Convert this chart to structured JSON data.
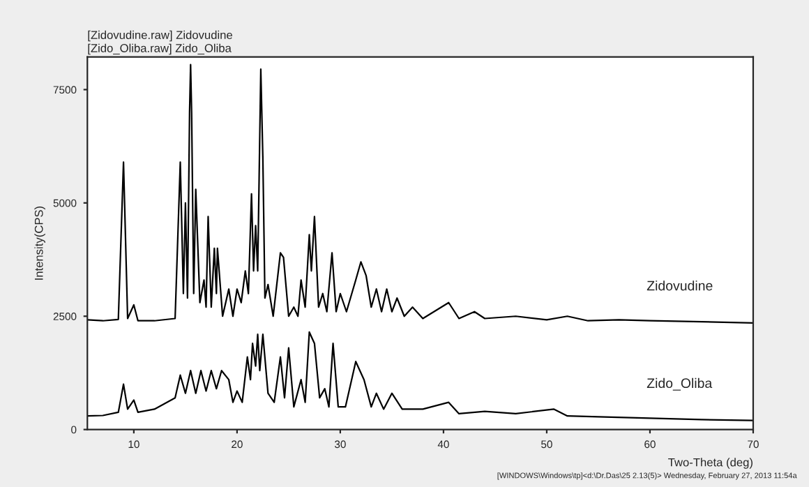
{
  "chart_data": {
    "type": "line",
    "xlabel": "Two-Theta (deg)",
    "ylabel": "Intensity(CPS)",
    "xlim": [
      5.5,
      70
    ],
    "ylim": [
      0,
      8220
    ],
    "xticks": [
      10,
      20,
      30,
      40,
      50,
      60,
      70
    ],
    "yticks": [
      0,
      2500,
      5000,
      7500
    ],
    "grid": false,
    "legend": false,
    "annotations": [
      "[Zidovudine.raw] Zidovudine",
      "[Zido_Oliba.raw] Zido_Oliba",
      "[WINDOWS\\Windows\\tp]<d:\\Dr.Das\\25 2.13(5)> Wednesday, February 27, 2013 11:54a"
    ],
    "series": [
      {
        "name": "Zidovudine",
        "color": "#000000",
        "x": [
          5.5,
          7,
          8.5,
          9.0,
          9.4,
          10.0,
          10.4,
          12,
          14.0,
          14.5,
          14.8,
          15.0,
          15.2,
          15.4,
          15.5,
          15.6,
          15.8,
          16.0,
          16.4,
          16.8,
          17.0,
          17.2,
          17.5,
          17.8,
          18.0,
          18.1,
          18.6,
          19.2,
          19.6,
          20.0,
          20.4,
          20.8,
          21.1,
          21.4,
          21.6,
          21.8,
          22.0,
          22.3,
          22.5,
          22.7,
          23.0,
          23.5,
          24.2,
          24.5,
          25.0,
          25.5,
          25.9,
          26.2,
          26.6,
          27.0,
          27.2,
          27.5,
          27.9,
          28.3,
          28.7,
          29.2,
          29.6,
          30.0,
          30.6,
          31.5,
          32.0,
          32.5,
          33.0,
          33.5,
          34.0,
          34.5,
          35.0,
          35.5,
          36.2,
          37,
          38,
          40.5,
          41.5,
          43,
          44,
          47,
          50,
          52,
          54,
          57,
          60,
          65,
          70
        ],
        "values": [
          2420,
          2400,
          2430,
          5900,
          2450,
          2750,
          2400,
          2400,
          2450,
          5900,
          3000,
          5000,
          2900,
          7000,
          8050,
          7000,
          3000,
          5300,
          2800,
          3300,
          2700,
          4700,
          2700,
          4000,
          3000,
          4000,
          2500,
          3100,
          2500,
          3100,
          2800,
          3500,
          3000,
          5200,
          3500,
          4500,
          3500,
          7950,
          6000,
          2900,
          3200,
          2500,
          3900,
          3800,
          2500,
          2700,
          2500,
          3300,
          2700,
          4300,
          3500,
          4700,
          2700,
          3000,
          2600,
          3900,
          2600,
          3000,
          2600,
          3300,
          3700,
          3400,
          2700,
          3100,
          2600,
          3100,
          2600,
          2900,
          2500,
          2700,
          2450,
          2800,
          2450,
          2600,
          2450,
          2500,
          2420,
          2500,
          2400,
          2420,
          2400,
          2380,
          2350
        ]
      },
      {
        "name": "Zido_Oliba",
        "color": "#000000",
        "x": [
          5.5,
          7,
          8.5,
          9.0,
          9.4,
          10.0,
          10.4,
          12,
          14.0,
          14.5,
          15.0,
          15.5,
          16.0,
          16.5,
          17.0,
          17.5,
          18.0,
          18.5,
          19.2,
          19.6,
          20.0,
          20.5,
          21.0,
          21.3,
          21.5,
          21.8,
          22.0,
          22.2,
          22.5,
          23.0,
          23.6,
          24.2,
          24.6,
          25.0,
          25.5,
          26.2,
          26.6,
          27.0,
          27.5,
          28.0,
          28.5,
          28.9,
          29.3,
          29.8,
          30.5,
          31.5,
          32.3,
          33.0,
          33.5,
          34.2,
          35.0,
          36.0,
          38,
          40.5,
          41.5,
          44,
          47,
          50.7,
          52,
          55,
          60,
          65,
          70
        ],
        "values": [
          300,
          310,
          380,
          1000,
          450,
          650,
          380,
          450,
          700,
          1200,
          800,
          1300,
          800,
          1300,
          850,
          1300,
          900,
          1300,
          1100,
          600,
          850,
          600,
          1600,
          1100,
          1900,
          1400,
          2100,
          1300,
          2100,
          800,
          600,
          1600,
          700,
          1800,
          500,
          1100,
          600,
          2150,
          1900,
          700,
          900,
          500,
          1900,
          500,
          500,
          1500,
          1100,
          500,
          800,
          450,
          800,
          450,
          450,
          600,
          350,
          400,
          350,
          450,
          300,
          280,
          250,
          220,
          200
        ]
      }
    ]
  }
}
